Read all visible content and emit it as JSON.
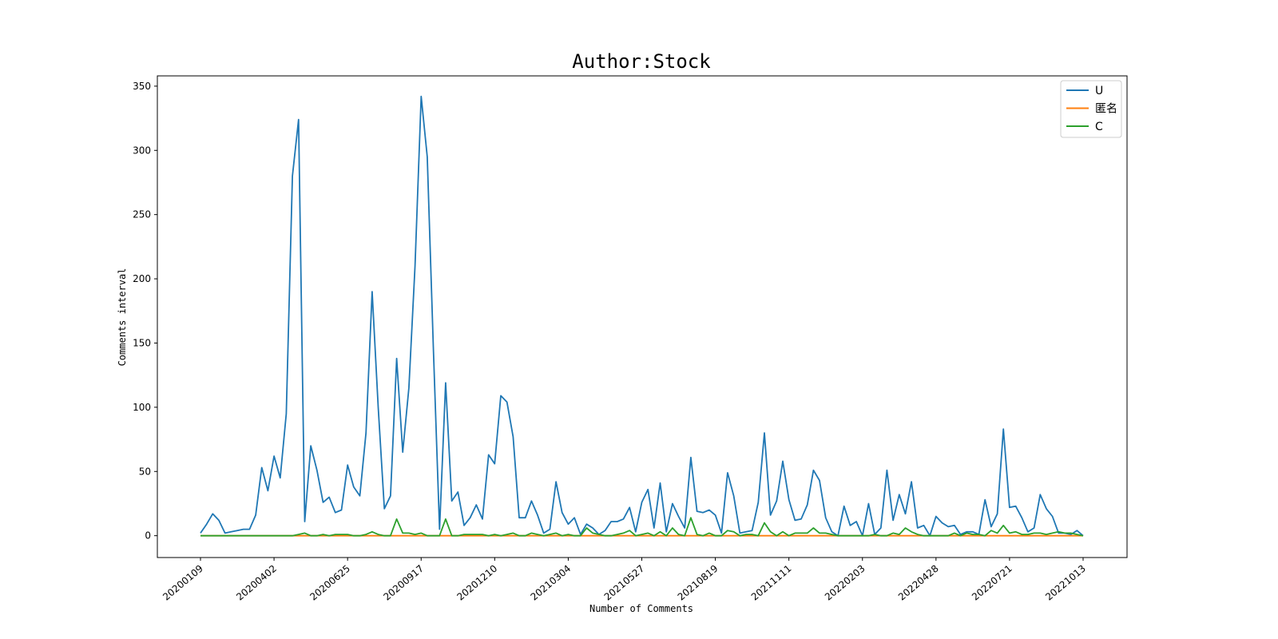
{
  "chart_data": {
    "type": "line",
    "title": "Author:Stock",
    "xlabel": "Number of Comments",
    "ylabel": "Comments interval",
    "ylim": [
      -17,
      358
    ],
    "yticks": [
      0,
      50,
      100,
      150,
      200,
      250,
      300,
      350
    ],
    "xtick_labels": [
      "20200109",
      "20200402",
      "20200625",
      "20200917",
      "20201210",
      "20210304",
      "20210527",
      "20210819",
      "20211111",
      "20220203",
      "20220428",
      "20220721",
      "20221013"
    ],
    "x_start": "20200109",
    "x_step_days": 7,
    "grid": false,
    "legend": "top-right",
    "series": [
      {
        "name": "U",
        "color": "#1f77b4",
        "values": [
          2,
          9,
          17,
          12,
          2,
          3,
          4,
          5,
          5,
          16,
          53,
          35,
          62,
          45,
          95,
          280,
          324,
          11,
          70,
          51,
          26,
          30,
          18,
          20,
          55,
          38,
          31,
          80,
          190,
          100,
          21,
          31,
          138,
          65,
          115,
          210,
          342,
          295,
          145,
          5,
          119,
          27,
          34,
          8,
          14,
          24,
          13,
          63,
          56,
          109,
          104,
          77,
          14,
          14,
          27,
          16,
          2,
          5,
          42,
          18,
          9,
          14,
          1,
          9,
          6,
          1,
          4,
          11,
          11,
          13,
          22,
          3,
          26,
          36,
          6,
          41,
          3,
          25,
          15,
          6,
          61,
          19,
          18,
          20,
          16,
          2,
          49,
          31,
          2,
          3,
          4,
          26,
          80,
          16,
          27,
          58,
          28,
          12,
          13,
          24,
          51,
          43,
          14,
          3,
          0,
          23,
          8,
          11,
          0,
          25,
          1,
          6,
          51,
          12,
          32,
          17,
          42,
          6,
          8,
          0,
          15,
          10,
          7,
          8,
          1,
          3,
          3,
          1,
          28,
          7,
          17,
          83,
          22,
          23,
          14,
          3,
          6,
          32,
          21,
          15,
          2,
          2,
          1,
          4,
          0
        ]
      },
      {
        "name": "匿名",
        "color": "#ff7f0e",
        "values": [
          0,
          0,
          0,
          0,
          0,
          0,
          0,
          0,
          0,
          0,
          0,
          0,
          0,
          0,
          0,
          0,
          0,
          0,
          0,
          0,
          0,
          0,
          0,
          0,
          0,
          0,
          0,
          0,
          0,
          0,
          0,
          0,
          0,
          0,
          0,
          0,
          0,
          0,
          0,
          0,
          0,
          0,
          0,
          0,
          0,
          0,
          0,
          0,
          0,
          0,
          0,
          0,
          0,
          0,
          0,
          0,
          0,
          0,
          0,
          0,
          0,
          0,
          0,
          0,
          0,
          0,
          0,
          0,
          0,
          0,
          0,
          0,
          0,
          0,
          0,
          0,
          0,
          0,
          0,
          0,
          0,
          0,
          0,
          0,
          0,
          0,
          0,
          0,
          0,
          0,
          0,
          0,
          0,
          0,
          0,
          0,
          0,
          0,
          0,
          0,
          0,
          0,
          0,
          0,
          0,
          0,
          0,
          0,
          0,
          0,
          0,
          0,
          0,
          0,
          0,
          0,
          0,
          0,
          0,
          0,
          0,
          0,
          0,
          0,
          0,
          0,
          0,
          0,
          0,
          0,
          0,
          0,
          0,
          0,
          0,
          0,
          0,
          0,
          0,
          0,
          0,
          0,
          0,
          0,
          0
        ]
      },
      {
        "name": "C",
        "color": "#2ca02c",
        "values": [
          0,
          0,
          0,
          0,
          0,
          0,
          0,
          0,
          0,
          0,
          0,
          0,
          0,
          0,
          0,
          0,
          1,
          2,
          0,
          0,
          1,
          0,
          1,
          1,
          1,
          0,
          0,
          1,
          3,
          1,
          0,
          0,
          13,
          2,
          2,
          1,
          2,
          0,
          0,
          0,
          13,
          0,
          0,
          1,
          1,
          1,
          1,
          0,
          1,
          0,
          1,
          2,
          0,
          0,
          2,
          1,
          0,
          1,
          2,
          0,
          1,
          0,
          0,
          6,
          2,
          1,
          0,
          0,
          1,
          2,
          4,
          0,
          1,
          2,
          0,
          3,
          0,
          6,
          1,
          0,
          14,
          1,
          0,
          2,
          0,
          0,
          4,
          3,
          0,
          1,
          1,
          0,
          10,
          3,
          0,
          3,
          0,
          2,
          2,
          2,
          6,
          2,
          2,
          1,
          0,
          0,
          0,
          0,
          0,
          0,
          1,
          0,
          0,
          2,
          1,
          6,
          3,
          1,
          0,
          0,
          0,
          0,
          0,
          2,
          0,
          2,
          1,
          1,
          0,
          4,
          2,
          8,
          2,
          3,
          1,
          1,
          2,
          2,
          1,
          2,
          3,
          2,
          2,
          1,
          0
        ]
      }
    ]
  }
}
